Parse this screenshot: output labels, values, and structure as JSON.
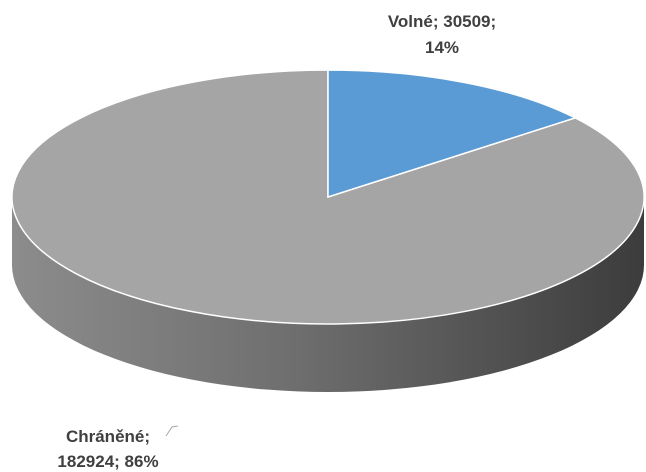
{
  "chart_data": {
    "type": "pie",
    "style": "3d",
    "slices": [
      {
        "label": "Volné",
        "value": 30509,
        "percent": "14%",
        "color": "#5b9bd5"
      },
      {
        "label": "Chráněné",
        "value": 182924,
        "percent": "86%",
        "color": "#a5a5a5"
      }
    ],
    "data_labels": {
      "volne_line1": "Volné; 30509;",
      "volne_line2": "14%",
      "chranene_line1": "Chráněné;",
      "chranene_line2": "182924; 86%"
    },
    "legend": "none"
  }
}
